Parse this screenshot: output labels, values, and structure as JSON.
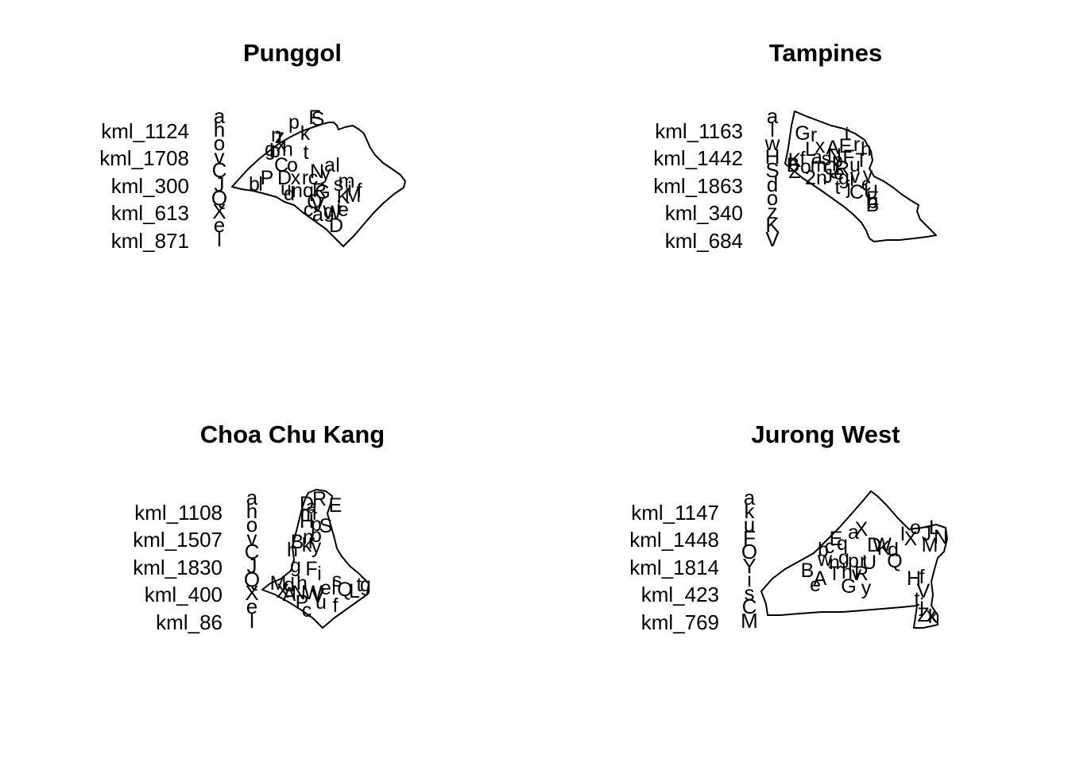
{
  "panels": [
    {
      "title": "Punggol",
      "legend": {
        "labels": [
          "kml_1124",
          "kml_1708",
          "kml_300",
          "kml_613",
          "kml_871"
        ],
        "symbols": [
          "a",
          "h",
          "o",
          "v",
          "C",
          "J",
          "Q",
          "X",
          "e",
          "l"
        ]
      },
      "points": [
        "F",
        "S",
        "p",
        "k",
        "n",
        "z",
        "x",
        "g",
        "b",
        "h",
        "t",
        "C",
        "o",
        "a",
        "l",
        "N",
        "y",
        "m",
        "b",
        "P",
        "l",
        "D",
        "x",
        "r",
        "c",
        "s",
        "u",
        "n",
        "q",
        "R",
        "G",
        "i",
        "f",
        "K",
        "M",
        "d",
        "Q",
        "V",
        "W",
        "e",
        "c",
        "a",
        "g",
        "i",
        "D"
      ]
    },
    {
      "title": "Tampines",
      "legend": {
        "labels": [
          "kml_1163",
          "kml_1442",
          "kml_1863",
          "kml_340",
          "kml_684"
        ],
        "symbols": [
          "a",
          "l",
          "w",
          "H",
          "S",
          "d",
          "o",
          "z",
          "K",
          "V"
        ]
      },
      "points": [
        "G",
        "r",
        "t",
        "L",
        "x",
        "A",
        "E",
        "r",
        "h",
        "f",
        "K",
        "s",
        "p",
        "F",
        "B",
        "m",
        "Q",
        "R",
        "u",
        "T",
        "o",
        "e",
        "Z",
        "2",
        "n",
        "J",
        "g",
        "v",
        "y",
        "t",
        "j",
        "C",
        "U",
        "b",
        "E",
        "B",
        "c",
        "i",
        "N",
        "a"
      ]
    },
    {
      "title": "Choa Chu Kang",
      "legend": {
        "labels": [
          "kml_1108",
          "kml_1507",
          "kml_1830",
          "kml_400",
          "kml_86"
        ],
        "symbols": [
          "a",
          "h",
          "o",
          "v",
          "C",
          "J",
          "Q",
          "X",
          "e",
          "l"
        ]
      },
      "points": [
        "R",
        "E",
        "D",
        "a",
        "m",
        "H",
        "p",
        "S",
        "n",
        "o",
        "B",
        "h",
        "k",
        "r",
        "y",
        "g",
        "F",
        "i",
        "M",
        "s",
        "d",
        "h",
        "e",
        "l",
        "Q",
        "g",
        "t",
        "f",
        "X",
        "A",
        "N",
        "W",
        "V",
        "c",
        "P",
        "u",
        "L"
      ]
    },
    {
      "title": "Jurong West",
      "legend": {
        "labels": [
          "kml_1147",
          "kml_1448",
          "kml_1814",
          "kml_423",
          "kml_769"
        ],
        "symbols": [
          "a",
          "k",
          "u",
          "F",
          "O",
          "Y",
          "i",
          "s",
          "C",
          "M"
        ]
      },
      "points": [
        "X",
        "a",
        "E",
        "q",
        "D",
        "W",
        "K",
        "I",
        "o",
        "X",
        "J",
        "L",
        "N",
        "M",
        "b",
        "c",
        "d",
        "w",
        "n",
        "g",
        "p",
        "r",
        "U",
        "Q",
        "B",
        "A",
        "T",
        "h",
        "v",
        "R",
        "e",
        "G",
        "y",
        "H",
        "f",
        "V",
        "t",
        "Z",
        "x",
        "j",
        "k"
      ]
    }
  ]
}
